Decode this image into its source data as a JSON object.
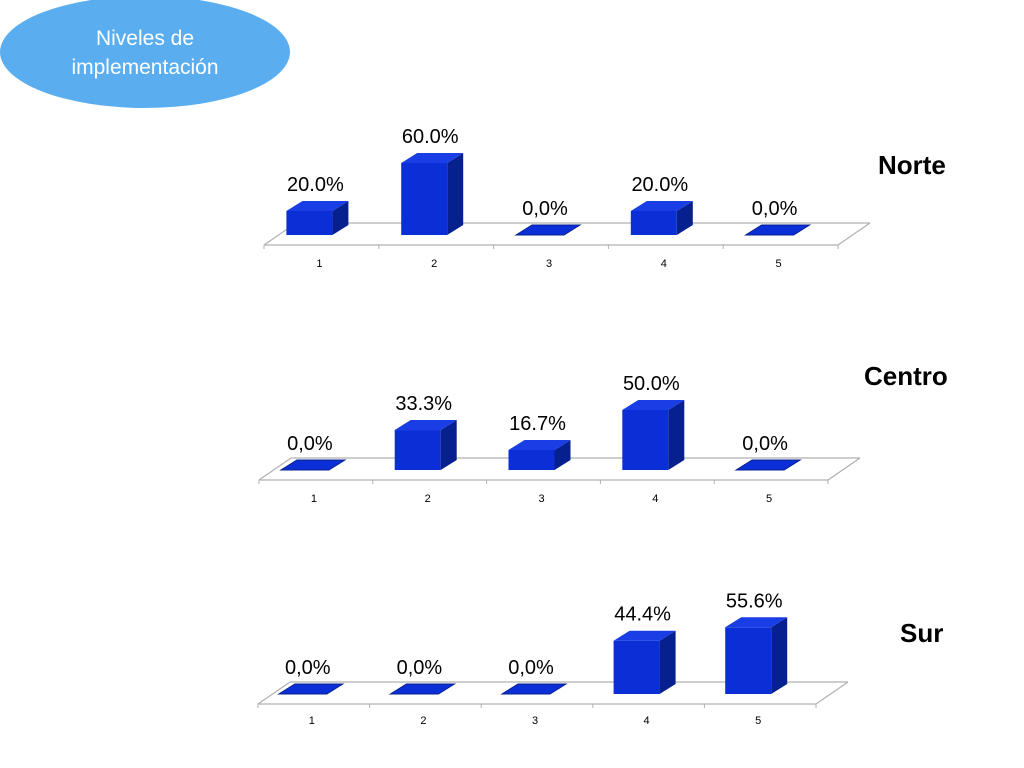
{
  "header": {
    "title": "Niveles de\nimplementación",
    "color": "#5aaef0"
  },
  "colors": {
    "bar_front": "#0a2fd6",
    "bar_side": "#07208f",
    "bar_top": "#1a3ee6",
    "floor_line": "#b0b0b0"
  },
  "chart_data": [
    {
      "type": "bar",
      "title": "Norte",
      "categories": [
        "1",
        "2",
        "3",
        "4",
        "5"
      ],
      "values": [
        20.0,
        60.0,
        0.0,
        20.0,
        0.0
      ],
      "data_labels": [
        "20.0%",
        "60.0%",
        "0,0%",
        "20.0%",
        "0,0%"
      ],
      "ylim": [
        0,
        60
      ]
    },
    {
      "type": "bar",
      "title": "Centro",
      "categories": [
        "1",
        "2",
        "3",
        "4",
        "5"
      ],
      "values": [
        0.0,
        33.3,
        16.7,
        50.0,
        0.0
      ],
      "data_labels": [
        "0,0%",
        "33.3%",
        "16.7%",
        "50.0%",
        "0,0%"
      ],
      "ylim": [
        0,
        60
      ]
    },
    {
      "type": "bar",
      "title": "Sur",
      "categories": [
        "1",
        "2",
        "3",
        "4",
        "5"
      ],
      "values": [
        0.0,
        0.0,
        0.0,
        44.4,
        55.6
      ],
      "data_labels": [
        "0,0%",
        "0,0%",
        "0,0%",
        "44.4%",
        "55.6%"
      ],
      "ylim": [
        0,
        60
      ]
    }
  ]
}
